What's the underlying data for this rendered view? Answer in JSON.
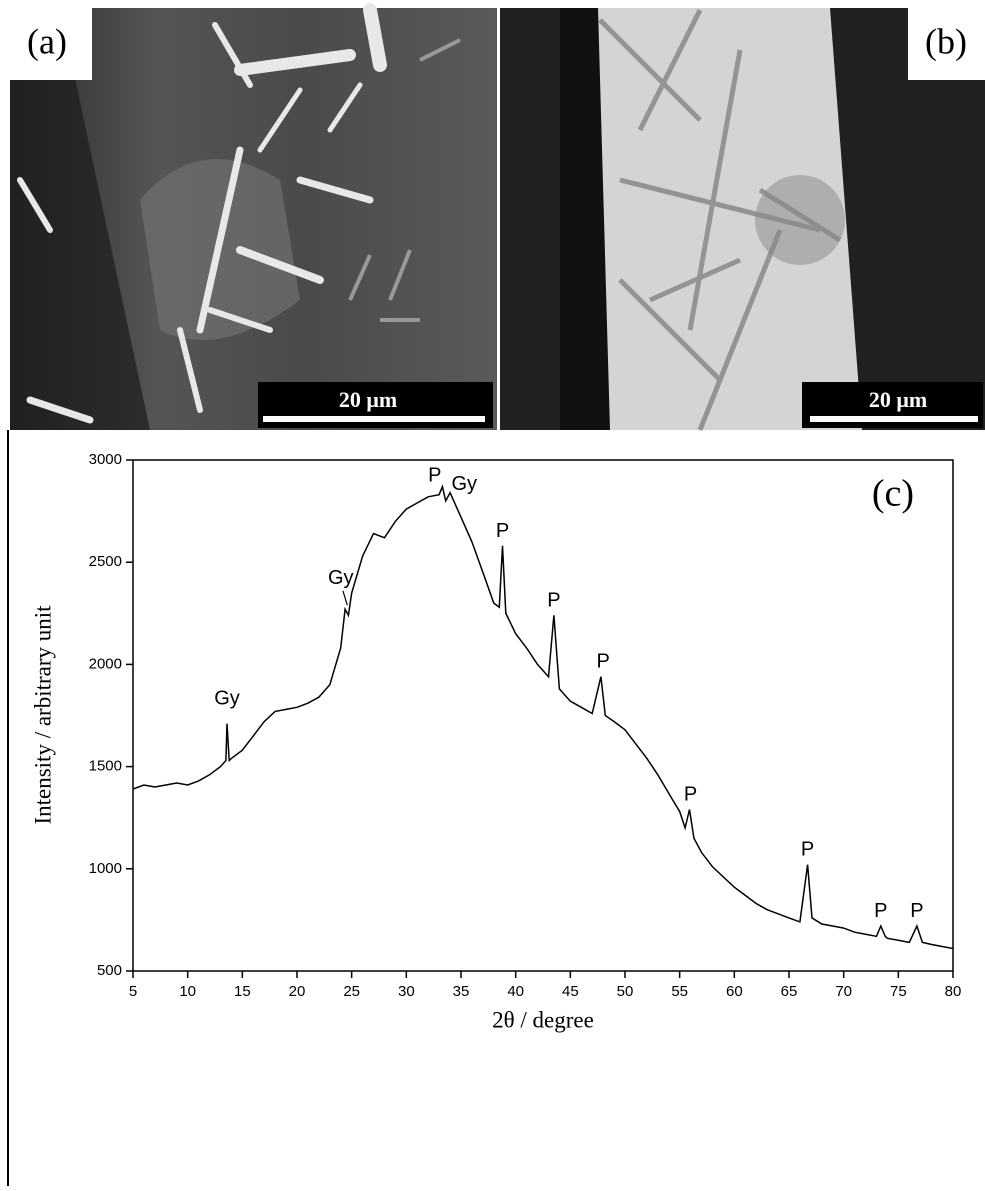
{
  "panels": [
    {
      "label": "(a)",
      "scale_bar": "20 μm"
    },
    {
      "label": "(b)",
      "scale_bar": "20 μm"
    }
  ],
  "chart_data": {
    "type": "line",
    "panel_label": "(c)",
    "x_label": "2θ / degree",
    "y_label": "Intensity / arbitrary unit",
    "color": "#000000",
    "x": [
      5,
      6,
      7,
      8,
      9,
      10,
      11,
      12,
      13,
      13.5,
      13.6,
      13.8,
      14,
      15,
      16,
      17,
      18,
      19,
      20,
      21,
      22,
      23,
      24,
      24.4,
      24.7,
      25,
      26,
      27,
      28,
      29,
      30,
      31,
      32,
      33,
      33.3,
      33.6,
      34,
      35,
      36,
      37,
      38,
      38.5,
      38.8,
      39.1,
      40,
      41,
      42,
      43,
      43.5,
      43.9,
      44,
      45,
      46,
      47,
      47.8,
      48.2,
      49,
      50,
      51,
      52,
      53,
      54,
      55,
      55.5,
      55.9,
      56.3,
      57,
      58,
      59,
      60,
      61,
      62,
      63,
      64,
      65,
      66,
      66.7,
      67.1,
      68,
      69,
      70,
      71,
      72,
      73,
      73.4,
      73.8,
      74,
      75,
      76,
      76.7,
      77.2,
      78,
      79,
      80
    ],
    "values": [
      1390,
      1410,
      1400,
      1410,
      1420,
      1410,
      1430,
      1460,
      1500,
      1530,
      1710,
      1530,
      1540,
      1580,
      1650,
      1720,
      1770,
      1780,
      1790,
      1810,
      1840,
      1900,
      2080,
      2270,
      2240,
      2350,
      2530,
      2640,
      2620,
      2700,
      2760,
      2790,
      2820,
      2830,
      2870,
      2800,
      2840,
      2720,
      2600,
      2450,
      2300,
      2280,
      2580,
      2250,
      2150,
      2080,
      2000,
      1940,
      2240,
      1950,
      1880,
      1820,
      1790,
      1760,
      1940,
      1750,
      1720,
      1680,
      1610,
      1540,
      1460,
      1370,
      1280,
      1200,
      1290,
      1150,
      1080,
      1010,
      960,
      910,
      870,
      830,
      800,
      780,
      760,
      740,
      1020,
      760,
      730,
      720,
      710,
      690,
      680,
      670,
      720,
      670,
      660,
      650,
      640,
      720,
      640,
      630,
      620,
      610
    ],
    "xlim": [
      5,
      80
    ],
    "xticks": [
      5,
      10,
      15,
      20,
      25,
      30,
      35,
      40,
      45,
      50,
      55,
      60,
      65,
      70,
      75,
      80
    ],
    "ylim": [
      500,
      3000
    ],
    "yticks": [
      500,
      1000,
      1500,
      2000,
      2500,
      3000
    ],
    "annotations": [
      "Gy",
      "Gy",
      "P",
      "Gy",
      "P",
      "P",
      "P",
      "P",
      "P",
      "P",
      "P"
    ]
  }
}
